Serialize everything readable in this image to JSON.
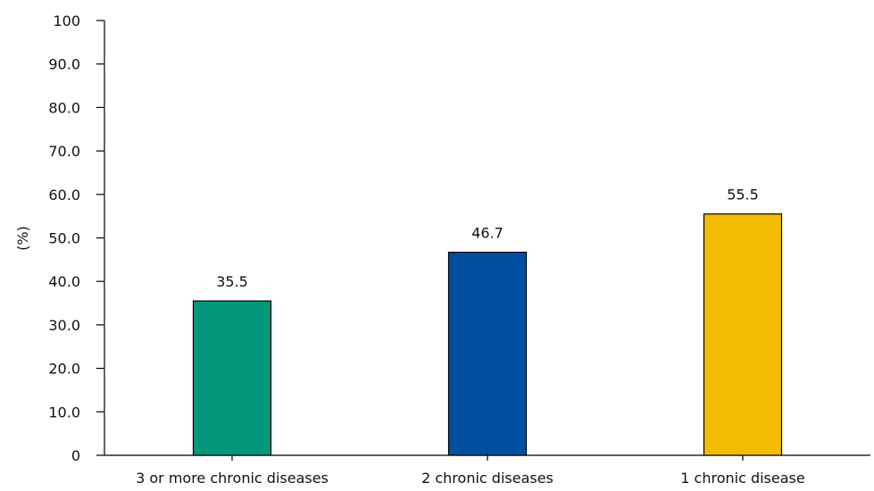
{
  "chart_data": {
    "type": "bar",
    "title": "",
    "xlabel": "",
    "ylabel": "(%)",
    "ylim": [
      0,
      100
    ],
    "yticks": [
      "0",
      "10.0",
      "20.0",
      "30.0",
      "40.0",
      "50.0",
      "60.0",
      "70.0",
      "80.0",
      "90.0",
      "100"
    ],
    "ytick_values": [
      0,
      10,
      20,
      30,
      40,
      50,
      60,
      70,
      80,
      90,
      100
    ],
    "categories": [
      "3 or more chronic diseases",
      "2 chronic diseases",
      "1 chronic disease"
    ],
    "values": [
      35.5,
      46.7,
      55.5
    ],
    "value_labels": [
      "35.5",
      "46.7",
      "55.5"
    ],
    "colors": [
      "#009878",
      "#0050a0",
      "#f2bc00"
    ],
    "grid": false,
    "legend": "none"
  }
}
